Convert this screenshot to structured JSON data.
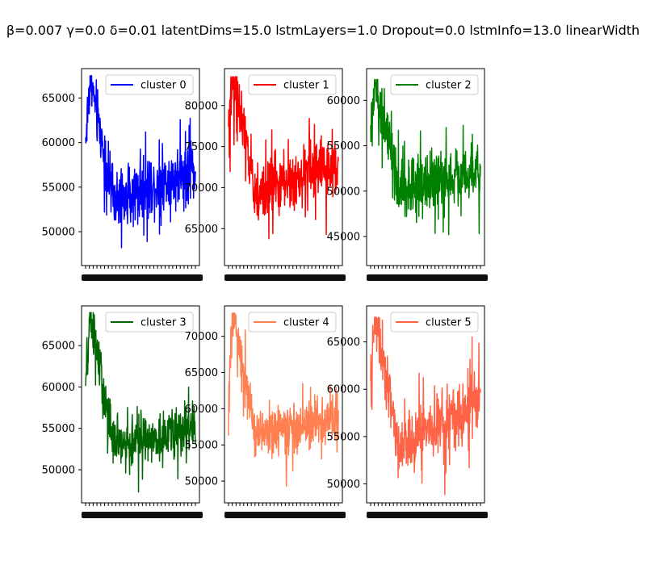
{
  "title": "β=0.007 γ=0.0 δ=0.01 latentDims=15.0 lstmLayers=1.0 Dropout=0.0 lstmInfo=13.0 linearWidth",
  "chart_data": [
    {
      "type": "line",
      "series": [
        {
          "name": "cluster 0",
          "color": "#0000ff"
        }
      ],
      "yticks": [
        "50000",
        "55000",
        "60000",
        "65000"
      ],
      "ytick_values": [
        50000,
        55000,
        60000,
        65000
      ],
      "ylim": [
        46200,
        68300
      ],
      "profile": {
        "start": 60000,
        "peak": 67300,
        "dip": 53500,
        "end": 57000,
        "noise": 3500,
        "low": 48200,
        "high": 67500
      }
    },
    {
      "type": "line",
      "series": [
        {
          "name": "cluster 1",
          "color": "#ff0000"
        }
      ],
      "yticks": [
        "65000",
        "70000",
        "75000",
        "80000"
      ],
      "ytick_values": [
        65000,
        70000,
        75000,
        80000
      ],
      "ylim": [
        60500,
        84500
      ],
      "profile": {
        "start": 77000,
        "peak": 83200,
        "dip": 69000,
        "end": 73000,
        "noise": 3800,
        "low": 62500,
        "high": 83500
      }
    },
    {
      "type": "line",
      "series": [
        {
          "name": "cluster 2",
          "color": "#008000"
        }
      ],
      "yticks": [
        "45000",
        "50000",
        "55000",
        "60000"
      ],
      "ytick_values": [
        45000,
        50000,
        55000,
        60000
      ],
      "ylim": [
        41800,
        63500
      ],
      "profile": {
        "start": 57000,
        "peak": 62200,
        "dip": 50000,
        "end": 52500,
        "noise": 3400,
        "low": 42800,
        "high": 62300
      }
    },
    {
      "type": "line",
      "series": [
        {
          "name": "cluster 3",
          "color": "#006400"
        }
      ],
      "yticks": [
        "50000",
        "55000",
        "60000",
        "65000"
      ],
      "ytick_values": [
        50000,
        55000,
        60000,
        65000
      ],
      "ylim": [
        46000,
        69800
      ],
      "profile": {
        "start": 60000,
        "peak": 69000,
        "dip": 53000,
        "end": 55000,
        "noise": 3500,
        "low": 47300,
        "high": 69000
      }
    },
    {
      "type": "line",
      "series": [
        {
          "name": "cluster 4",
          "color": "#ff7f50"
        }
      ],
      "yticks": [
        "50000",
        "55000",
        "60000",
        "65000",
        "70000"
      ],
      "ytick_values": [
        50000,
        55000,
        60000,
        65000,
        70000
      ],
      "ylim": [
        47000,
        74200
      ],
      "profile": {
        "start": 61000,
        "peak": 73200,
        "dip": 56500,
        "end": 58500,
        "noise": 3600,
        "low": 49000,
        "high": 73200
      }
    },
    {
      "type": "line",
      "series": [
        {
          "name": "cluster 5",
          "color": "#ff6347"
        }
      ],
      "yticks": [
        "50000",
        "55000",
        "60000",
        "65000"
      ],
      "ytick_values": [
        50000,
        55000,
        60000,
        65000
      ],
      "ylim": [
        48000,
        68800
      ],
      "profile": {
        "start": 61000,
        "peak": 67500,
        "dip": 54000,
        "end": 58500,
        "noise": 3500,
        "low": 48600,
        "high": 67600
      }
    }
  ]
}
